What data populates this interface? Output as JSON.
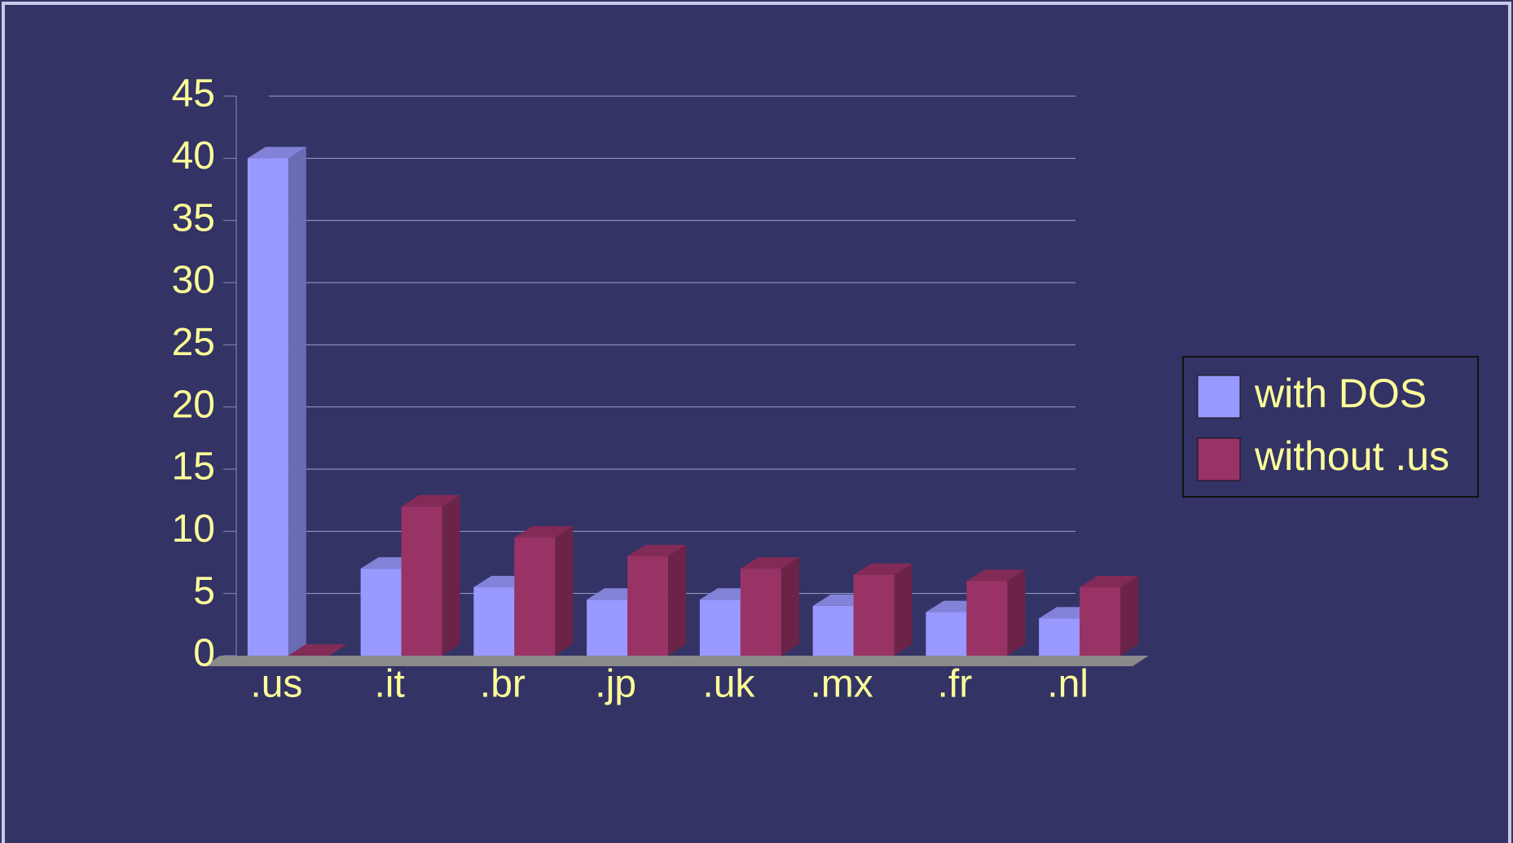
{
  "chart_data": {
    "type": "bar",
    "categories": [
      ".us",
      ".it",
      ".br",
      ".jp",
      ".uk",
      ".mx",
      ".fr",
      ".nl"
    ],
    "series": [
      {
        "name": "with DOS",
        "color": "#9999ff",
        "values": [
          40,
          7,
          5.5,
          4.5,
          4.5,
          4,
          3.5,
          3
        ]
      },
      {
        "name": "without .us",
        "color": "#993366",
        "values": [
          0,
          12,
          9.5,
          8,
          7,
          6.5,
          6,
          5.5
        ]
      }
    ],
    "ylim": [
      0,
      45
    ],
    "yticks": [
      0,
      5,
      10,
      15,
      20,
      25,
      30,
      35,
      40,
      45
    ],
    "grid": true,
    "legend": "right"
  }
}
